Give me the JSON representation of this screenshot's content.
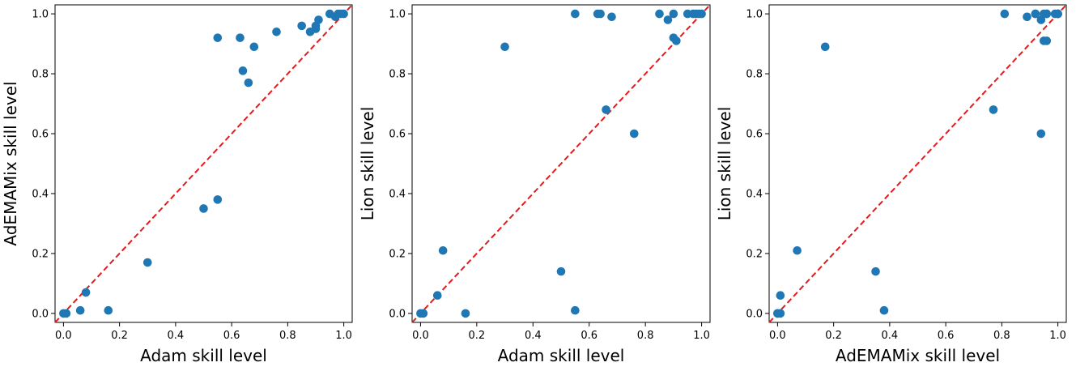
{
  "colors": {
    "point": "#1f77b4",
    "diagonal": "#e41a1c",
    "axis": "#000000"
  },
  "chart_data": [
    {
      "type": "scatter",
      "xlabel": "Adam skill level",
      "ylabel": "AdEMAMix skill level",
      "xlim": [
        -0.03,
        1.03
      ],
      "ylim": [
        -0.03,
        1.03
      ],
      "xticks": [
        "0.0",
        "0.2",
        "0.4",
        "0.6",
        "0.8",
        "1.0"
      ],
      "yticks": [
        "0.0",
        "0.2",
        "0.4",
        "0.6",
        "0.8",
        "1.0"
      ],
      "points": [
        [
          0.0,
          0.0
        ],
        [
          0.01,
          0.0
        ],
        [
          0.06,
          0.01
        ],
        [
          0.08,
          0.07
        ],
        [
          0.16,
          0.01
        ],
        [
          0.3,
          0.17
        ],
        [
          0.5,
          0.35
        ],
        [
          0.55,
          0.38
        ],
        [
          0.55,
          0.92
        ],
        [
          0.63,
          0.92
        ],
        [
          0.64,
          0.81
        ],
        [
          0.66,
          0.77
        ],
        [
          0.68,
          0.89
        ],
        [
          0.76,
          0.94
        ],
        [
          0.85,
          0.96
        ],
        [
          0.88,
          0.94
        ],
        [
          0.9,
          0.95
        ],
        [
          0.9,
          0.96
        ],
        [
          0.91,
          0.98
        ],
        [
          0.95,
          1.0
        ],
        [
          0.97,
          0.99
        ],
        [
          0.98,
          1.0
        ],
        [
          0.99,
          1.0
        ],
        [
          1.0,
          1.0
        ]
      ]
    },
    {
      "type": "scatter",
      "xlabel": "Adam skill level",
      "ylabel": "Lion skill level",
      "xlim": [
        -0.03,
        1.03
      ],
      "ylim": [
        -0.03,
        1.03
      ],
      "xticks": [
        "0.0",
        "0.2",
        "0.4",
        "0.6",
        "0.8",
        "1.0"
      ],
      "yticks": [
        "0.0",
        "0.2",
        "0.4",
        "0.6",
        "0.8",
        "1.0"
      ],
      "points": [
        [
          0.0,
          0.0
        ],
        [
          0.01,
          0.0
        ],
        [
          0.06,
          0.06
        ],
        [
          0.08,
          0.21
        ],
        [
          0.16,
          0.0
        ],
        [
          0.3,
          0.89
        ],
        [
          0.5,
          0.14
        ],
        [
          0.55,
          0.01
        ],
        [
          0.55,
          1.0
        ],
        [
          0.63,
          1.0
        ],
        [
          0.64,
          1.0
        ],
        [
          0.66,
          0.68
        ],
        [
          0.68,
          0.99
        ],
        [
          0.76,
          0.6
        ],
        [
          0.85,
          1.0
        ],
        [
          0.88,
          0.98
        ],
        [
          0.9,
          1.0
        ],
        [
          0.9,
          0.92
        ],
        [
          0.91,
          0.91
        ],
        [
          0.95,
          1.0
        ],
        [
          0.97,
          1.0
        ],
        [
          0.98,
          1.0
        ],
        [
          0.99,
          1.0
        ],
        [
          1.0,
          1.0
        ]
      ]
    },
    {
      "type": "scatter",
      "xlabel": "AdEMAMix skill level",
      "ylabel": "Lion skill level",
      "xlim": [
        -0.03,
        1.03
      ],
      "ylim": [
        -0.03,
        1.03
      ],
      "xticks": [
        "0.0",
        "0.2",
        "0.4",
        "0.6",
        "0.8",
        "1.0"
      ],
      "yticks": [
        "0.0",
        "0.2",
        "0.4",
        "0.6",
        "0.8",
        "1.0"
      ],
      "points": [
        [
          0.0,
          0.0
        ],
        [
          0.0,
          0.0
        ],
        [
          0.01,
          0.06
        ],
        [
          0.01,
          0.0
        ],
        [
          0.07,
          0.21
        ],
        [
          0.17,
          0.89
        ],
        [
          0.35,
          0.14
        ],
        [
          0.38,
          0.01
        ],
        [
          0.77,
          0.68
        ],
        [
          0.81,
          1.0
        ],
        [
          0.89,
          0.99
        ],
        [
          0.92,
          1.0
        ],
        [
          0.92,
          1.0
        ],
        [
          0.94,
          0.6
        ],
        [
          0.94,
          0.98
        ],
        [
          0.95,
          0.91
        ],
        [
          0.96,
          0.91
        ],
        [
          0.96,
          1.0
        ],
        [
          0.99,
          1.0
        ],
        [
          1.0,
          1.0
        ],
        [
          1.0,
          1.0
        ],
        [
          0.96,
          1.0
        ],
        [
          0.95,
          1.0
        ],
        [
          1.0,
          1.0
        ]
      ]
    }
  ]
}
